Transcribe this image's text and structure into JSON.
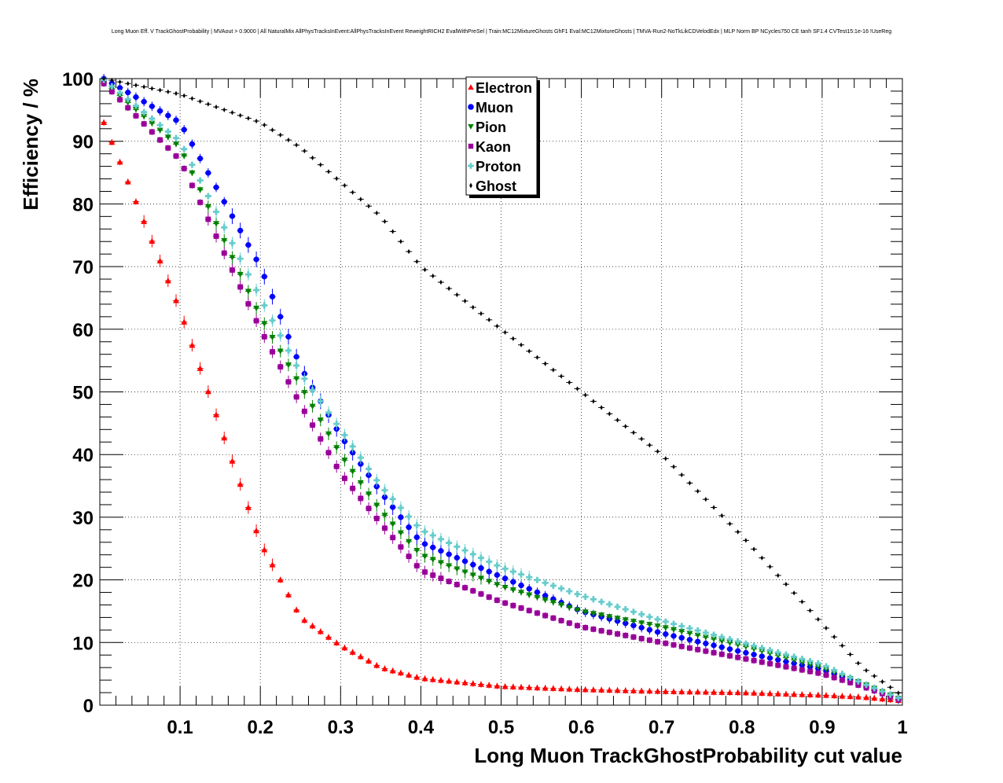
{
  "chart_data": {
    "type": "scatter",
    "title": "Long Muon Eff. V TrackGhostProbability | MVAout > 0.9000 | All NaturalMix AllPhysTracksInEvent:AllPhysTracksInEvent ReweightRICH2 EvalWithPreSel | Train:MC12MixtureGhosts GhF1 Eval:MC12MixtureGhosts | TMVA-Run2-NoTkLikCDVelodEdx | MLP Norm BP NCycles750 CE tanh SF1.4 CVTest15:1e-16 !UseReg",
    "xlabel": "Long Muon TrackGhostProbability cut value",
    "ylabel": "Efficiency / %",
    "xlim": [
      0,
      1
    ],
    "ylim": [
      0,
      100
    ],
    "grid": true,
    "legend_position": "top-center",
    "x_ticks": [
      "0.1",
      "0.2",
      "0.3",
      "0.4",
      "0.5",
      "0.6",
      "0.7",
      "0.8",
      "0.9",
      "1"
    ],
    "y_ticks": [
      "0",
      "10",
      "20",
      "30",
      "40",
      "50",
      "60",
      "70",
      "80",
      "90",
      "100"
    ],
    "anchor_x": [
      0.005,
      0.1,
      0.2,
      0.25,
      0.3,
      0.35,
      0.4,
      0.5,
      0.6,
      0.7,
      0.8,
      0.9,
      0.95,
      1.0
    ],
    "series": [
      {
        "name": "Electron",
        "color": "#ff0000",
        "marker": "triangle-up",
        "values": [
          93,
          63,
          26,
          14,
          9.5,
          6,
          4.3,
          3,
          2.5,
          2.2,
          2,
          1.6,
          1.3,
          0.7
        ]
      },
      {
        "name": "Muon",
        "color": "#0000ff",
        "marker": "circle",
        "values": [
          100,
          93,
          70,
          54,
          43,
          34,
          26,
          20.5,
          15,
          11.5,
          8.5,
          5.7,
          3.3,
          0.7
        ]
      },
      {
        "name": "Pion",
        "color": "#008000",
        "marker": "triangle-down",
        "values": [
          99.5,
          89,
          62,
          51,
          40,
          31,
          24,
          19,
          15,
          12.5,
          9.5,
          6,
          3.5,
          0.8
        ]
      },
      {
        "name": "Kaon",
        "color": "#990099",
        "marker": "square",
        "values": [
          99.2,
          87,
          60,
          48,
          37,
          29,
          21.5,
          16.5,
          12.5,
          10,
          7.5,
          5,
          3,
          0.7
        ]
      },
      {
        "name": "Proton",
        "color": "#66cccc",
        "marker": "cross",
        "values": [
          99.8,
          90,
          65,
          53,
          44,
          35,
          28,
          22,
          17.5,
          13.5,
          10,
          6.5,
          3.5,
          0.9
        ]
      },
      {
        "name": "Ghost",
        "color": "#000000",
        "marker": "diamond",
        "values": [
          100,
          97.5,
          93,
          89,
          83.5,
          78,
          70,
          60,
          50,
          40,
          27,
          13,
          6,
          1.5
        ]
      }
    ]
  }
}
